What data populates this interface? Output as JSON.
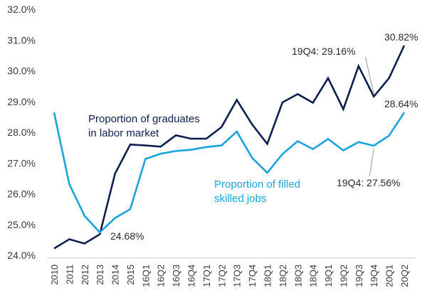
{
  "chart_data": {
    "type": "line",
    "categories": [
      "2010",
      "2011",
      "2012",
      "2013",
      "2014",
      "2015",
      "16Q1",
      "16Q2",
      "16Q3",
      "16Q4",
      "17Q1",
      "17Q2",
      "17Q3",
      "17Q4",
      "18Q1",
      "18Q2",
      "18Q3",
      "18Q4",
      "19Q1",
      "19Q2",
      "19Q3",
      "19Q4",
      "20Q1",
      "20Q2"
    ],
    "y_ticks": [
      "24.0%",
      "25.0%",
      "26.0%",
      "27.0%",
      "28.0%",
      "29.0%",
      "30.0%",
      "31.0%",
      "32.0%"
    ],
    "ylim": [
      24.0,
      32.0
    ],
    "grid": false,
    "series": [
      {
        "name": "Proportion of graduates in labor market",
        "label_lines": [
          "Proportion of graduates",
          "in labor market"
        ],
        "color": "#0c1f4f",
        "values": [
          24.22,
          24.52,
          24.38,
          24.68,
          26.65,
          27.6,
          27.57,
          27.53,
          27.9,
          27.79,
          27.79,
          28.17,
          29.05,
          28.26,
          27.62,
          28.97,
          29.24,
          28.96,
          29.76,
          28.75,
          30.15,
          29.16,
          29.76,
          30.82
        ]
      },
      {
        "name": "Proportion of filled skilled jobs",
        "label_lines": [
          "Proportion of filled",
          "skilled jobs"
        ],
        "color": "#1aa3dc",
        "values": [
          28.64,
          26.31,
          25.28,
          24.74,
          25.21,
          25.5,
          27.13,
          27.3,
          27.39,
          27.43,
          27.52,
          27.57,
          28.02,
          27.17,
          26.68,
          27.29,
          27.71,
          27.45,
          27.78,
          27.41,
          27.68,
          27.56,
          27.89,
          28.64
        ]
      }
    ],
    "annotations": [
      {
        "text": "24.68%",
        "series": 0,
        "index": 3
      },
      {
        "text": "19Q4: 29.16%",
        "series": 0,
        "index": 21
      },
      {
        "text": "30.82%",
        "series": 0,
        "index": 23
      },
      {
        "text": "28.64%",
        "series": 1,
        "index": 23
      },
      {
        "text": "19Q4: 27.56%",
        "series": 1,
        "index": 21
      }
    ]
  }
}
